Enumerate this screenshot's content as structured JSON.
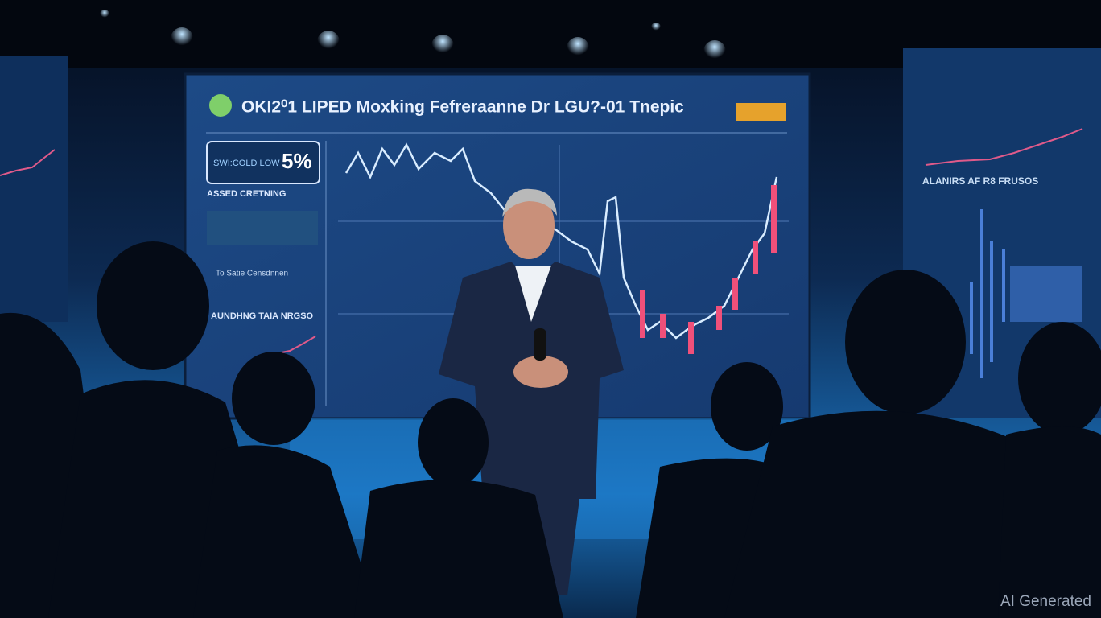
{
  "screen": {
    "title": "OKI2⁰1 LIPED Moxking Fefreraanne Dr LGU?-01 Tnepic",
    "badge_label": "SWI:COLD LOW",
    "badge_value": "5%",
    "panel_heading": "ASSED CRETNING",
    "panel_line": "To Satie Censdnnen",
    "panel_heading_2": "AUNDHNG TAIA NRGSO"
  },
  "side_screen": {
    "heading": "ALANIRS AF R8 FRUSOS"
  },
  "watermark": "AI Generated"
}
